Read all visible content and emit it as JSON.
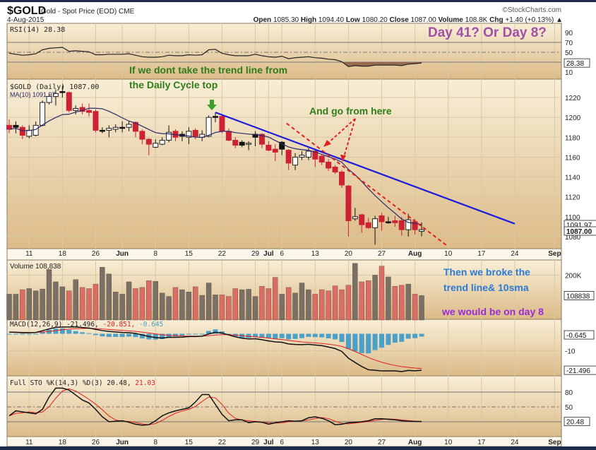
{
  "header": {
    "symbol": "$GOLD",
    "name": "Gold - Spot Price (EOD) CME",
    "copyright": "©StockCharts.com",
    "date": "4-Aug-2015",
    "open_label": "Open",
    "open": "1085.30",
    "high_label": "High",
    "high": "1094.40",
    "low_label": "Low",
    "low": "1080.20",
    "close_label": "Close",
    "close": "1087.00",
    "volume_label": "Volume",
    "volume": "108.8K",
    "chg_label": "Chg",
    "chg": "+1.40 (+0.13%)"
  },
  "legends": {
    "rsi": "RSI(14) 28.38",
    "price": "$GOLD (Daily) 1087.00",
    "ma": "MA(10) 1091.97",
    "volume": "Volume 108,838",
    "macd_name": "MACD(12,26,9) -21.496,",
    "macd_signal": " -20.851,",
    "macd_hist": " -0.645",
    "sto_name": "Full STO %K(14,3) %D(3) 20.48,",
    "sto_d": " 21.03"
  },
  "value_tags": {
    "rsi": "28.38",
    "ma": "1091.97",
    "price": "1087.00",
    "volume": "108838",
    "macd_hist": "-0.645",
    "macd": "-21.496",
    "sto": "20.48"
  },
  "annotations": {
    "day_question": "Day 41?  Or  Day 8?",
    "trend_line_1": "If we dont take the trend line from",
    "trend_line_2": "the Daily Cycle top",
    "go_from_here": "And go from here",
    "broke_1": "Then we broke the",
    "broke_2": "trend line& 10sma",
    "day8": "we would be on day 8"
  },
  "colors": {
    "down": "#cc2233",
    "up": "#111111",
    "ma": "#2a2a6a",
    "vol_down": "#dc6c66",
    "vol_up": "#7a7066",
    "trendline": "#1a1adc",
    "dashed": "#e02020",
    "purple_big": "#a050a8",
    "green": "#2f7d1a",
    "blue_text": "#2a7ad8",
    "purple_text": "#9a2ad8",
    "macd_hist": "#4aa0c8"
  },
  "chart_data": [
    {
      "type": "line",
      "title": "$GOLD (Daily) candlesticks with MA(10)",
      "x_dates": [
        "May 6",
        "May 7",
        "May 8",
        "May 11",
        "May 12",
        "May 13",
        "May 14",
        "May 15",
        "May 18",
        "May 19",
        "May 20",
        "May 21",
        "May 22",
        "May 26",
        "May 27",
        "May 28",
        "May 29",
        "Jun 1",
        "Jun 2",
        "Jun 3",
        "Jun 4",
        "Jun 5",
        "Jun 8",
        "Jun 9",
        "Jun 10",
        "Jun 11",
        "Jun 12",
        "Jun 15",
        "Jun 16",
        "Jun 17",
        "Jun 18",
        "Jun 19",
        "Jun 22",
        "Jun 23",
        "Jun 24",
        "Jun 25",
        "Jun 26",
        "Jun 29",
        "Jun 30",
        "Jul 1",
        "Jul 2",
        "Jul 6",
        "Jul 7",
        "Jul 8",
        "Jul 9",
        "Jul 10",
        "Jul 13",
        "Jul 14",
        "Jul 15",
        "Jul 16",
        "Jul 17",
        "Jul 20",
        "Jul 21",
        "Jul 22",
        "Jul 23",
        "Jul 24",
        "Jul 27",
        "Jul 28",
        "Jul 29",
        "Jul 30",
        "Jul 31",
        "Aug 3",
        "Aug 4"
      ],
      "ohlc": [
        [
          1192,
          1198,
          1184,
          1188
        ],
        [
          1192,
          1196,
          1184,
          1190
        ],
        [
          1190,
          1192,
          1178,
          1182
        ],
        [
          1181,
          1192,
          1179,
          1187
        ],
        [
          1182,
          1196,
          1181,
          1192
        ],
        [
          1192,
          1217,
          1191,
          1215
        ],
        [
          1215,
          1224,
          1213,
          1221
        ],
        [
          1221,
          1228,
          1212,
          1224
        ],
        [
          1226,
          1232,
          1220,
          1226
        ],
        [
          1225,
          1226,
          1205,
          1207
        ],
        [
          1207,
          1212,
          1203,
          1209
        ],
        [
          1210,
          1214,
          1203,
          1206
        ],
        [
          1207,
          1214,
          1201,
          1205
        ],
        [
          1206,
          1208,
          1185,
          1187
        ],
        [
          1187,
          1190,
          1184,
          1187
        ],
        [
          1187,
          1192,
          1180,
          1189
        ],
        [
          1188,
          1193,
          1185,
          1190
        ],
        [
          1190,
          1196,
          1185,
          1190
        ],
        [
          1190,
          1196,
          1186,
          1193
        ],
        [
          1195,
          1196,
          1180,
          1186
        ],
        [
          1186,
          1188,
          1173,
          1178
        ],
        [
          1178,
          1179,
          1162,
          1173
        ],
        [
          1170,
          1178,
          1169,
          1174
        ],
        [
          1173,
          1180,
          1172,
          1177
        ],
        [
          1177,
          1192,
          1175,
          1185
        ],
        [
          1186,
          1188,
          1176,
          1180
        ],
        [
          1183,
          1186,
          1176,
          1181
        ],
        [
          1180,
          1190,
          1173,
          1186
        ],
        [
          1187,
          1189,
          1178,
          1181
        ],
        [
          1180,
          1187,
          1176,
          1183
        ],
        [
          1181,
          1202,
          1180,
          1200
        ],
        [
          1201,
          1205,
          1195,
          1201
        ],
        [
          1201,
          1203,
          1184,
          1186
        ],
        [
          1186,
          1189,
          1176,
          1177
        ],
        [
          1177,
          1180,
          1169,
          1172
        ],
        [
          1175,
          1177,
          1170,
          1172
        ],
        [
          1173,
          1176,
          1167,
          1174
        ],
        [
          1183,
          1186,
          1171,
          1180
        ],
        [
          1183,
          1184,
          1169,
          1173
        ],
        [
          1172,
          1176,
          1166,
          1167
        ],
        [
          1168,
          1173,
          1156,
          1165
        ],
        [
          1175,
          1176,
          1162,
          1168
        ],
        [
          1167,
          1168,
          1147,
          1154
        ],
        [
          1152,
          1164,
          1147,
          1160
        ],
        [
          1160,
          1166,
          1157,
          1162
        ],
        [
          1160,
          1169,
          1157,
          1166
        ],
        [
          1166,
          1168,
          1150,
          1158
        ],
        [
          1161,
          1163,
          1152,
          1155
        ],
        [
          1155,
          1158,
          1146,
          1149
        ],
        [
          1150,
          1152,
          1143,
          1145
        ],
        [
          1145,
          1147,
          1129,
          1132
        ],
        [
          1131,
          1132,
          1080,
          1096
        ],
        [
          1098,
          1109,
          1096,
          1100
        ],
        [
          1102,
          1103,
          1084,
          1092
        ],
        [
          1094,
          1099,
          1088,
          1089
        ],
        [
          1089,
          1101,
          1072,
          1098
        ],
        [
          1101,
          1104,
          1086,
          1095
        ],
        [
          1095,
          1100,
          1093,
          1095
        ],
        [
          1096,
          1101,
          1090,
          1094
        ],
        [
          1096,
          1100,
          1081,
          1087
        ],
        [
          1087,
          1103,
          1080,
          1097
        ],
        [
          1095,
          1098,
          1082,
          1087
        ],
        [
          1085.3,
          1094.4,
          1080.2,
          1087.0
        ]
      ],
      "ma_period": 10,
      "y_ticks": [
        1220,
        1200,
        1180,
        1160,
        1140,
        1120,
        1100,
        1080
      ],
      "ylim": [
        1065,
        1235
      ],
      "x_tick_labels": [
        {
          "label": "11",
          "index": 3
        },
        {
          "label": "18",
          "index": 8
        },
        {
          "label": "26",
          "index": 13
        },
        {
          "label": "Jun",
          "index": 17,
          "bold": true
        },
        {
          "label": "8",
          "index": 22
        },
        {
          "label": "15",
          "index": 27
        },
        {
          "label": "22",
          "index": 32
        },
        {
          "label": "29",
          "index": 37
        },
        {
          "label": "Jul",
          "index": 39,
          "bold": true
        },
        {
          "label": "6",
          "index": 41
        },
        {
          "label": "13",
          "index": 46
        },
        {
          "label": "20",
          "index": 51
        },
        {
          "label": "27",
          "index": 56
        },
        {
          "label": "Aug",
          "index": 61,
          "bold": true
        },
        {
          "label": "10",
          "index": 66
        },
        {
          "label": "17",
          "index": 71
        },
        {
          "label": "24",
          "index": 76
        },
        {
          "label": "Sep",
          "index": 82,
          "bold": true
        }
      ],
      "trendline": {
        "from": [
          31,
          1205
        ],
        "to": [
          76,
          1093
        ]
      },
      "dashed_line": {
        "from": [
          41.7,
          1194
        ],
        "to": [
          66,
          1070
        ]
      },
      "green_arrow_at": [
        31,
        1205
      ]
    },
    {
      "type": "line",
      "title": "RSI(14)",
      "ylim": [
        0,
        100
      ],
      "y_ticks": [
        90,
        70,
        50,
        10
      ],
      "levels": [
        70,
        50,
        30
      ],
      "values": [
        48,
        46,
        44,
        45,
        47,
        55,
        58,
        59,
        60,
        52,
        53,
        52,
        51,
        45,
        45,
        46,
        46,
        46,
        47,
        44,
        41,
        40,
        40,
        41,
        44,
        43,
        43,
        45,
        44,
        45,
        55,
        56,
        48,
        45,
        43,
        43,
        43,
        46,
        43,
        41,
        40,
        42,
        37,
        39,
        40,
        41,
        39,
        38,
        36,
        35,
        31,
        21,
        23,
        22,
        22,
        24,
        24,
        24,
        24,
        23,
        26,
        27,
        28.38
      ]
    },
    {
      "type": "bar",
      "title": "Volume",
      "unit": "K",
      "y_ticks": [
        200
      ],
      "values": [
        115,
        115,
        135,
        140,
        130,
        138,
        225,
        170,
        148,
        130,
        180,
        145,
        140,
        160,
        235,
        205,
        125,
        115,
        170,
        140,
        145,
        175,
        172,
        120,
        105,
        145,
        135,
        125,
        148,
        110,
        165,
        112,
        112,
        105,
        140,
        135,
        137,
        105,
        150,
        140,
        190,
        115,
        145,
        120,
        165,
        135,
        115,
        135,
        130,
        152,
        135,
        155,
        252,
        170,
        175,
        200,
        240,
        192,
        150,
        155,
        160,
        115,
        108.8
      ]
    },
    {
      "type": "line",
      "title": "MACD(12,26,9)",
      "y_ticks": [
        -10
      ],
      "signal_ema": 9,
      "values": [
        1.0,
        0.9,
        0.6,
        0.6,
        0.8,
        1.8,
        2.9,
        3.8,
        4.4,
        4.2,
        4.0,
        3.7,
        3.4,
        2.6,
        1.9,
        1.4,
        1.1,
        0.8,
        0.7,
        0.2,
        -0.7,
        -1.6,
        -2.2,
        -2.5,
        -2.1,
        -2.1,
        -2.0,
        -1.6,
        -1.6,
        -1.4,
        -0.1,
        0.9,
        0.4,
        -0.7,
        -1.8,
        -2.6,
        -3.0,
        -2.9,
        -3.5,
        -4.2,
        -4.8,
        -5.0,
        -6.0,
        -6.3,
        -6.4,
        -6.2,
        -6.6,
        -7.0,
        -7.8,
        -8.7,
        -10.4,
        -14.4,
        -16.9,
        -19.3,
        -21.2,
        -21.5,
        -21.9,
        -21.9,
        -21.9,
        -22.3,
        -21.6,
        -21.8,
        -21.496
      ]
    },
    {
      "type": "line",
      "title": "Full STO %K(14,3) %D(3)",
      "ylim": [
        0,
        100
      ],
      "y_ticks": [
        80,
        50
      ],
      "levels": [
        80,
        50,
        20
      ],
      "d_period": 3,
      "k_values": [
        32,
        42,
        40,
        38,
        36,
        45,
        70,
        88,
        88,
        84,
        74,
        64,
        58,
        45,
        30,
        20,
        21,
        22,
        19,
        15,
        13,
        14,
        22,
        32,
        38,
        42,
        45,
        48,
        60,
        75,
        75,
        55,
        35,
        22,
        24,
        24,
        18,
        20,
        19,
        15,
        18,
        20,
        22,
        21,
        22,
        28,
        30,
        27,
        22,
        14,
        15,
        18,
        19,
        20,
        22,
        26,
        26,
        25,
        24,
        22,
        21,
        20.5,
        20.48
      ]
    }
  ]
}
